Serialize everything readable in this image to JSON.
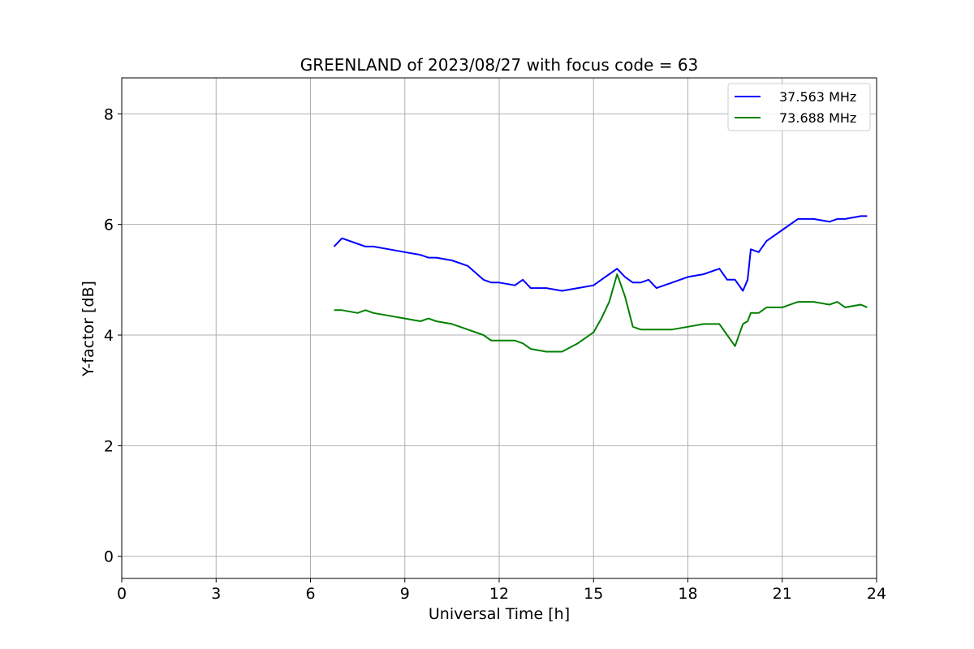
{
  "chart_data": {
    "type": "line",
    "title": "GREENLAND of 2023/08/27 with focus code = 63",
    "xlabel": "Universal Time [h]",
    "ylabel": "Y-factor [dB]",
    "xlim": [
      0,
      24
    ],
    "ylim": [
      -0.4,
      8.65
    ],
    "xticks": [
      0,
      3,
      6,
      9,
      12,
      15,
      18,
      21,
      24
    ],
    "yticks": [
      0,
      2,
      4,
      6,
      8
    ],
    "grid": true,
    "legend_position": "top-right",
    "series": [
      {
        "name": "37.563 MHz",
        "color": "#0000ff",
        "x": [
          6.75,
          7.0,
          7.5,
          7.75,
          8.0,
          8.5,
          9.0,
          9.5,
          9.75,
          10.0,
          10.5,
          11.0,
          11.5,
          11.75,
          12.0,
          12.5,
          12.75,
          13.0,
          13.5,
          14.0,
          14.5,
          15.0,
          15.25,
          15.5,
          15.75,
          16.0,
          16.25,
          16.5,
          16.75,
          17.0,
          17.5,
          18.0,
          18.5,
          19.0,
          19.25,
          19.5,
          19.75,
          19.9,
          20.0,
          20.25,
          20.5,
          21.0,
          21.5,
          22.0,
          22.5,
          22.75,
          23.0,
          23.5,
          23.7
        ],
        "y": [
          5.6,
          5.75,
          5.65,
          5.6,
          5.6,
          5.55,
          5.5,
          5.45,
          5.4,
          5.4,
          5.35,
          5.25,
          5.0,
          4.95,
          4.95,
          4.9,
          5.0,
          4.85,
          4.85,
          4.8,
          4.85,
          4.9,
          5.0,
          5.1,
          5.2,
          5.05,
          4.95,
          4.95,
          5.0,
          4.85,
          4.95,
          5.05,
          5.1,
          5.2,
          5.0,
          5.0,
          4.8,
          5.0,
          5.55,
          5.5,
          5.7,
          5.9,
          6.1,
          6.1,
          6.05,
          6.1,
          6.1,
          6.15,
          6.15
        ]
      },
      {
        "name": "73.688 MHz",
        "color": "#008000",
        "x": [
          6.75,
          7.0,
          7.5,
          7.75,
          8.0,
          8.5,
          9.0,
          9.5,
          9.75,
          10.0,
          10.5,
          11.0,
          11.5,
          11.75,
          12.0,
          12.5,
          12.75,
          13.0,
          13.5,
          14.0,
          14.5,
          15.0,
          15.25,
          15.5,
          15.75,
          16.0,
          16.25,
          16.5,
          16.75,
          17.0,
          17.5,
          18.0,
          18.5,
          19.0,
          19.25,
          19.5,
          19.75,
          19.9,
          20.0,
          20.25,
          20.5,
          21.0,
          21.5,
          22.0,
          22.5,
          22.75,
          23.0,
          23.5,
          23.7
        ],
        "y": [
          4.45,
          4.45,
          4.4,
          4.45,
          4.4,
          4.35,
          4.3,
          4.25,
          4.3,
          4.25,
          4.2,
          4.1,
          4.0,
          3.9,
          3.9,
          3.9,
          3.85,
          3.75,
          3.7,
          3.7,
          3.85,
          4.05,
          4.3,
          4.6,
          5.1,
          4.7,
          4.15,
          4.1,
          4.1,
          4.1,
          4.1,
          4.15,
          4.2,
          4.2,
          4.0,
          3.8,
          4.2,
          4.25,
          4.4,
          4.4,
          4.5,
          4.5,
          4.6,
          4.6,
          4.55,
          4.6,
          4.5,
          4.55,
          4.5
        ]
      }
    ]
  }
}
